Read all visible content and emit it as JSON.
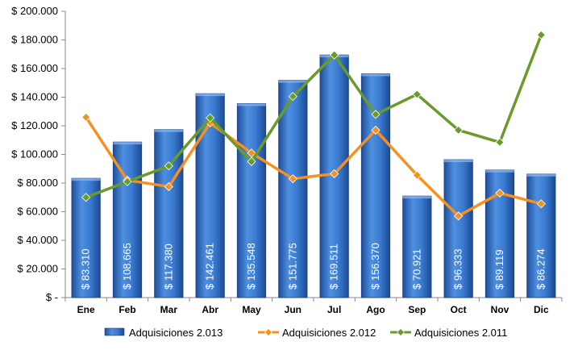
{
  "chart_data": {
    "type": "bar",
    "categories": [
      "Ene",
      "Feb",
      "Mar",
      "Abr",
      "May",
      "Jun",
      "Jul",
      "Ago",
      "Sep",
      "Oct",
      "Nov",
      "Dic"
    ],
    "ylim": [
      0,
      200000
    ],
    "y_ticks": [
      {
        "value": 0,
        "label": "$ -"
      },
      {
        "value": 20000,
        "label": "$ 20.000"
      },
      {
        "value": 40000,
        "label": "$ 40.000"
      },
      {
        "value": 60000,
        "label": "$ 60.000"
      },
      {
        "value": 80000,
        "label": "$ 80.000"
      },
      {
        "value": 100000,
        "label": "$ 100.000"
      },
      {
        "value": 120000,
        "label": "$ 120.000"
      },
      {
        "value": 140000,
        "label": "$ 140.000"
      },
      {
        "value": 160000,
        "label": "$ 160.000"
      },
      {
        "value": 180000,
        "label": "$ 180.000"
      },
      {
        "value": 200000,
        "label": "$ 200.000"
      }
    ],
    "grid": false,
    "legend_position": "bottom",
    "series": [
      {
        "name": "Adquisiciones 2.013",
        "type": "bar",
        "color": "#2e6fc4",
        "values": [
          83310,
          108665,
          117380,
          142461,
          135548,
          151775,
          169511,
          156370,
          70921,
          96333,
          89119,
          86274
        ],
        "data_labels": [
          "$ 83.310",
          "$ 108.665",
          "$ 117.380",
          "$ 142.461",
          "$ 135.548",
          "$ 151.775",
          "$ 169.511",
          "$ 156.370",
          "$ 70.921",
          "$ 96.333",
          "$ 89.119",
          "$ 86.274"
        ]
      },
      {
        "name": "Adquisiciones 2.012",
        "type": "line",
        "color": "#f7901e",
        "values": [
          126000,
          82000,
          77500,
          122000,
          101000,
          83000,
          86500,
          117000,
          85500,
          57000,
          73000,
          65500
        ]
      },
      {
        "name": "Adquisiciones 2.011",
        "type": "line",
        "color": "#6a9a2a",
        "values": [
          70000,
          81000,
          92000,
          125500,
          95000,
          140500,
          169500,
          128000,
          142000,
          117000,
          108500,
          183500
        ]
      }
    ]
  }
}
